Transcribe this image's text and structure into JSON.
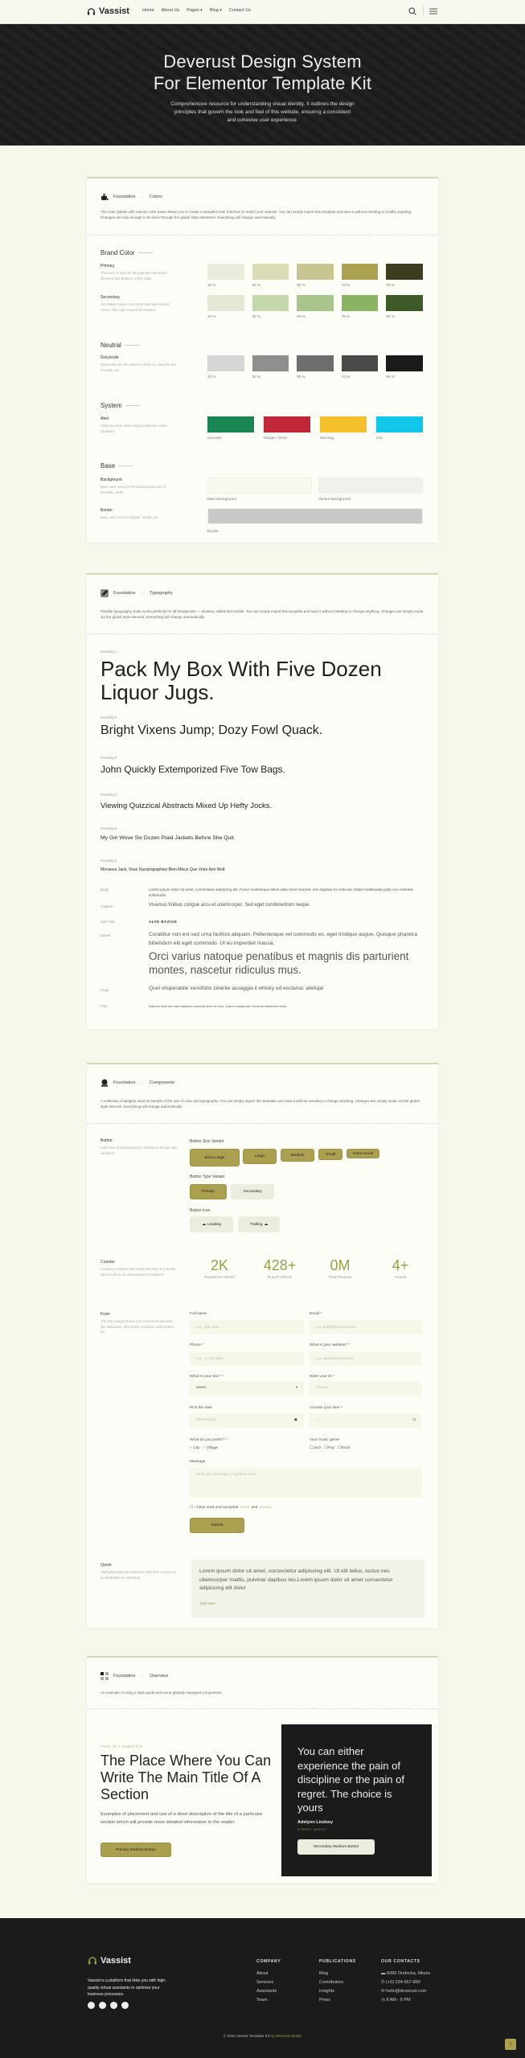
{
  "nav": {
    "logo": "Vassist",
    "links": [
      "Home",
      "About Us",
      "Pages",
      "Blog",
      "Contact Us"
    ]
  },
  "hero": {
    "title_line1": "Deverust Design System",
    "title_line2": "For Elementor Template Kit",
    "description": "Comprehensive resource for understanding visual identity. It outlines the design principles that govern the look and feel of this website, ensuring a consistent and cohesive user experience."
  },
  "colors": {
    "crumb_root": "Foundation",
    "crumb_current": "Colors",
    "description": "The color palette with various color tones allows you to create a beautiful User Interface to match your website. You can simply import this template and save it without needing to modify anything. Changes are only enough to be done through the global style elementor. Everything will change automatically.",
    "brand_heading": "Brand Color",
    "primary": {
      "name": "Primary",
      "desc": "This color is used for all important interactive elements like Buttons, CTAs, links",
      "swatches": [
        {
          "color": "#eaecdb",
          "label": "10 %"
        },
        {
          "color": "#dcdcb9",
          "label": "30 %"
        },
        {
          "color": "#c9c592",
          "label": "50 %"
        },
        {
          "color": "#aba150",
          "label": "70 %"
        },
        {
          "color": "#3c3c1f",
          "label": "90 %"
        }
      ]
    },
    "secondary": {
      "name": "Secondary",
      "desc": "Secondary colors come from alternative brand colors. This color is used for variation",
      "swatches": [
        {
          "color": "#e2e8d4",
          "label": "10 %"
        },
        {
          "color": "#c5d8ad",
          "label": "30 %"
        },
        {
          "color": "#a9c58b",
          "label": "50 %"
        },
        {
          "color": "#8bb364",
          "label": "70 %"
        },
        {
          "color": "#3f5a29",
          "label": "90 %"
        }
      ]
    },
    "neutral_heading": "Neutral",
    "greyscale": {
      "name": "Greyscale",
      "desc": "Gray tones are the essence of the UI. Used for text or cards, etc.",
      "swatches": [
        {
          "color": "#d6d6d6",
          "label": "10 %"
        },
        {
          "color": "#8f8f8f",
          "label": "30 %"
        },
        {
          "color": "#6e6e6e",
          "label": "50 %"
        },
        {
          "color": "#4a4a4a",
          "label": "70 %"
        },
        {
          "color": "#1a1a1a",
          "label": "90 %"
        }
      ]
    },
    "system_heading": "System",
    "alert": {
      "name": "Alert",
      "desc": "Alerts are four colors used to indicate certain situations",
      "swatches": [
        {
          "color": "#1b8553",
          "label": "Success"
        },
        {
          "color": "#c0283a",
          "label": "Danger / Error"
        },
        {
          "color": "#f6c02c",
          "label": "Warning"
        },
        {
          "color": "#12c7e9",
          "label": "Info"
        }
      ]
    },
    "base_heading": "Base",
    "background": {
      "name": "Background",
      "desc": "Base color used for the background color of sections, cards",
      "swatches": [
        {
          "color": "#f9f9ef",
          "label": "Main Background"
        },
        {
          "color": "#f1f1ec",
          "label": "Variant Background"
        }
      ]
    },
    "border": {
      "name": "Border",
      "desc": "Base color used for divider, border, etc.",
      "swatch": {
        "color": "#c8c8c8",
        "label": "Border"
      }
    }
  },
  "typography": {
    "crumb_root": "Foundation",
    "crumb_current": "Typography",
    "description": "Flexible typography scale works perfectly for all breakpoints — desktop, tablet and mobile. You can simply import this template and save it without needing to change anything. Changes are simply made via the global style element. Everything will change automatically.",
    "headings": [
      {
        "label": "Heading 1",
        "text": "Pack My Box With Five Dozen Liquor Jugs."
      },
      {
        "label": "Heading 2",
        "text": "Bright Vixens Jump; Dozy Fowl Quack."
      },
      {
        "label": "Heading 3",
        "text": "John Quickly Extemporized Five Tow Bags."
      },
      {
        "label": "Heading 4",
        "text": "Viewing Quizzical Abstracts Mixed Up Hefty Jocks."
      },
      {
        "label": "Heading 5",
        "text": "My Girl Wove Six Dozen Plaid Jackets Before She Quit."
      },
      {
        "label": "Heading 6",
        "text": "Monsieur Jack, Vous Dactylographiez Bien Mieux Que Votre Ami Wolf."
      }
    ],
    "body": {
      "label": "Body",
      "text": "Lorem ipsum dolor sit amet, consectetur adipiscing elit. Fusce scelerisque tellus vitae lorem laoreet, nec dapibus ex vehicula. Etiam malesuada justo non molestie sollicitudin."
    },
    "caption": {
      "label": "Caption",
      "text": "Vivamus finibus congue arcu et ullamcorper. Sed eget condimentum neque."
    },
    "subtitle": {
      "label": "Sub Title",
      "text": "ALVE BAZIGE"
    },
    "quote": {
      "label": "Quote",
      "text": "Curabitur non est sed urna facilisis aliquam. Pellentesque vel commodo ex, eget tristique augue. Quisque pharetra bibendum elit eget commodo. Ut eu imperdiet massa.",
      "large": "Orci varius natoque penatibus et magnis dis parturient montes, nascetur ridiculus mus."
    },
    "huge": {
      "label": "Huge",
      "text": "Quel vituperabile xenofobo zelante assaggia il whisky ed esclama: alleluja!"
    },
    "tiny": {
      "label": "Tiny",
      "text": "Nulla nec ante nec enim maximus cursus sit amet vel nunc. Cras eu massa nisl. Donec ac elementum tortor."
    }
  },
  "components": {
    "crumb_root": "Foundation",
    "crumb_current": "Components",
    "description": "A collection of widgets used as sample of the use of color and typography. You can simply import this template and save it without needing to change anything. Changes are simply made via the global style element. Everything will change automatically.",
    "button": {
      "name": "Button",
      "desc": "Collection of buttons used in website or design with variations",
      "size_title": "Button Size Variant",
      "sizes": [
        "Extra Large",
        "Large",
        "Medium",
        "Small",
        "Extra Small"
      ],
      "type_title": "Button Type Variant",
      "types": [
        "Primary",
        "Secondary"
      ],
      "icon_title": "Button Icon",
      "icons": [
        "Leading",
        "Trailing"
      ]
    },
    "counter": {
      "name": "Counter",
      "desc": "Counting numbers that rotate and stop at a certain value to show an achievement in numbers",
      "items": [
        {
          "value": "2K",
          "label": "Registered Clients"
        },
        {
          "value": "428+",
          "label": "Branch Offices"
        },
        {
          "value": "0M",
          "label": "Total Revenue"
        },
        {
          "value": "4+",
          "label": "Awards"
        }
      ]
    },
    "form": {
      "name": "Form",
      "desc": "The form widget shows you several components like datepicker, time picker, textarea, radio button, etc.",
      "full_name": {
        "label": "Full name",
        "placeholder": "e.g. John Doe"
      },
      "email": {
        "label": "Email *",
        "placeholder": "e.g. hello@deverust.com"
      },
      "phone": {
        "label": "Phone *",
        "placeholder": "e.g. +1 123 4567"
      },
      "website": {
        "label": "What is your website? *",
        "placeholder": "e.g. www.deverust.com"
      },
      "sex": {
        "label": "What is your sex? *",
        "value": "Select"
      },
      "id": {
        "label": "Write your ID *",
        "placeholder": "one123"
      },
      "date": {
        "label": "Pick the date",
        "placeholder": "dd/mm/yyyy"
      },
      "time": {
        "label": "Choose your time *",
        "placeholder": "--:-- --"
      },
      "prefer": {
        "label": "What do you prefer? *",
        "options": [
          "City",
          "Village"
        ]
      },
      "music": {
        "label": "Your music genre",
        "options": [
          "Jazz",
          "Pop",
          "Rock"
        ]
      },
      "message": {
        "label": "Message",
        "placeholder": "Write your message or question here..."
      },
      "terms": {
        "before": "I have read and accepted",
        "terms": "terms",
        "and": "and",
        "privacy": "privacy"
      },
      "submit": "Submit"
    },
    "quote": {
      "name": "Quote",
      "desc": "Highlighted special sentences that form a series as an illustration or statement",
      "text": "Lorem ipsum dolor sit amet, consectetur adipiscing elit. Ut elit tellus, luctus nec ullamcorper mattis, pulvinar dapibus leo.Lorem ipsum dolor sit amet consectetur adipiscing elit dolor",
      "author": "John Doe"
    }
  },
  "overview": {
    "crumb_root": "Foundation",
    "crumb_current": "Overview",
    "description": "An example of using a style guide and some globally managed components",
    "subtitle": "THIS IS A SUBTITLE",
    "title": "The Place Where You Can Write The Main Title Of A Section",
    "text": "Examples of placement and use of a short description of the title of a particular section which will provide more detailed information to the reader",
    "primary_button": "Primary Medium Button",
    "quote": "You can either experience the pain of discipline or the pain of regret. The choice is yours",
    "author": "Adelynn Lindsey",
    "role": "STREET ARTIST",
    "secondary_button": "Secondary Medium Button"
  },
  "footer": {
    "logo": "Vassist",
    "about": "Vassist is a platform that links you with high-quality virtual assistants to optimise your business processes.",
    "company": {
      "title": "COMPANY",
      "links": [
        "About",
        "Services",
        "Assistants",
        "Team"
      ]
    },
    "publications": {
      "title": "PUBLICATIONS",
      "links": [
        "Blog",
        "Contributors",
        "Insights",
        "Press"
      ]
    },
    "contacts": {
      "title": "OUR CONTACTS",
      "items": [
        "6090 Ondricka, Illinois",
        "(+0) 234-567-890",
        "hello@deverust.com",
        "8 AM - 6 PM"
      ]
    },
    "copyright": "© 2024 Vassist Template Kit",
    "credit": "by Deverust Studio"
  },
  "accent": "#aba04f"
}
